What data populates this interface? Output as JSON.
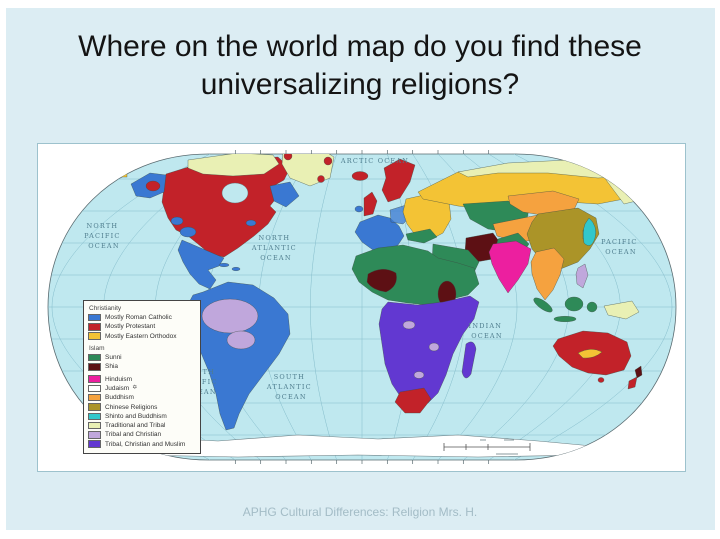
{
  "slide": {
    "title": "Where on the world map do you find these universalizing religions?",
    "footer": "APHG Cultural Differences:  Religion   Mrs. H.",
    "background_color": "#dcedf3"
  },
  "map": {
    "ocean_color": "#bfe8ef",
    "ocean_labels": [
      {
        "name": "arctic-ocean",
        "lines": [
          "ARCTIC  OCEAN"
        ]
      },
      {
        "name": "north-pacific-ocean",
        "lines": [
          "NORTH",
          "PACIFIC",
          "OCEAN"
        ]
      },
      {
        "name": "north-atlantic-ocean",
        "lines": [
          "NORTH",
          "ATLANTIC",
          "OCEAN"
        ]
      },
      {
        "name": "pacific-ocean",
        "lines": [
          "PACIFIC",
          "OCEAN"
        ]
      },
      {
        "name": "indian-ocean",
        "lines": [
          "INDIAN",
          "OCEAN"
        ]
      },
      {
        "name": "south-pacific-ocean",
        "lines": [
          "SOUTH",
          "PACIFIC",
          "OCEAN"
        ]
      },
      {
        "name": "south-atlantic-ocean",
        "lines": [
          "SOUTH",
          "ATLANTIC",
          "OCEAN"
        ]
      }
    ],
    "legend": {
      "colors": {
        "catholic": "#3a78d2",
        "protestant": "#c22229",
        "orthodox": "#f3c335",
        "sunni": "#2e8a58",
        "shia": "#5d1014",
        "hinduism": "#ec1f9f",
        "judaism": "#ffffff",
        "buddhism": "#f5a23f",
        "chinese": "#ab9428",
        "shinto": "#32c7cb",
        "traditional": "#e9f0b4",
        "tribal_christian": "#c0a7dc",
        "tribal_christian_muslim": "#6238d1"
      },
      "groups": [
        {
          "header": "Christianity",
          "items": [
            {
              "label": "Mostly Roman Catholic",
              "religion": "catholic"
            },
            {
              "label": "Mostly Protestant",
              "religion": "protestant"
            },
            {
              "label": "Mostly Eastern Orthodox",
              "religion": "orthodox"
            }
          ]
        },
        {
          "header": "Islam",
          "items": [
            {
              "label": "Sunni",
              "religion": "sunni"
            },
            {
              "label": "Shia",
              "religion": "shia"
            }
          ]
        },
        {
          "header": "",
          "items": [
            {
              "label": "Hinduism",
              "religion": "hinduism"
            },
            {
              "label": "Judaism",
              "religion": "judaism",
              "suffix": "✡"
            },
            {
              "label": "Buddhism",
              "religion": "buddhism"
            },
            {
              "label": "Chinese Religions",
              "religion": "chinese"
            },
            {
              "label": "Shinto and Buddhism",
              "religion": "shinto"
            },
            {
              "label": "Traditional and Tribal",
              "religion": "traditional"
            },
            {
              "label": "Tribal and Christian",
              "religion": "tribal_christian"
            },
            {
              "label": "Tribal, Christian and Muslim",
              "religion": "tribal_christian_muslim"
            }
          ]
        }
      ]
    }
  }
}
